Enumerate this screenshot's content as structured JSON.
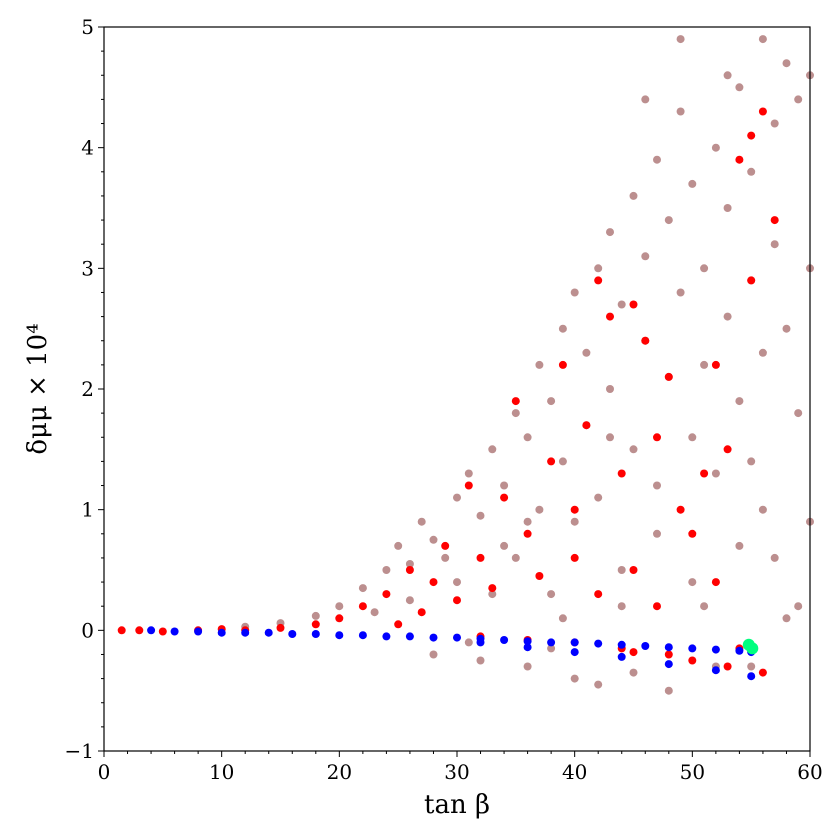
{
  "chart_data": {
    "type": "scatter",
    "xlabel": "tan β",
    "ylabel": "δμμ × 10⁴",
    "xlim": [
      0,
      60
    ],
    "ylim": [
      -1,
      5
    ],
    "xticks": [
      0,
      10,
      20,
      30,
      40,
      50,
      60
    ],
    "yticks": [
      -1,
      0,
      1,
      2,
      3,
      4,
      5
    ],
    "x_tick_labels": [
      "0",
      "10",
      "20",
      "30",
      "40",
      "50",
      "60"
    ],
    "y_tick_labels": [
      "−1",
      "0",
      "1",
      "2",
      "3",
      "4",
      "5"
    ],
    "grid": false,
    "legend": "none",
    "series": [
      {
        "color": "#bc8f8f",
        "points": [
          [
            12,
            0.03
          ],
          [
            15,
            0.06
          ],
          [
            18,
            0.12
          ],
          [
            20,
            0.2
          ],
          [
            22,
            0.35
          ],
          [
            24,
            0.5
          ],
          [
            25,
            0.7
          ],
          [
            26,
            0.55
          ],
          [
            27,
            0.9
          ],
          [
            28,
            0.75
          ],
          [
            28,
            -0.2
          ],
          [
            30,
            1.1
          ],
          [
            30,
            0.4
          ],
          [
            31,
            1.3
          ],
          [
            32,
            0.95
          ],
          [
            32,
            -0.25
          ],
          [
            33,
            1.5
          ],
          [
            34,
            1.2
          ],
          [
            35,
            1.8
          ],
          [
            35,
            0.6
          ],
          [
            36,
            1.6
          ],
          [
            36,
            -0.3
          ],
          [
            37,
            2.2
          ],
          [
            37,
            1.0
          ],
          [
            38,
            1.9
          ],
          [
            38,
            0.3
          ],
          [
            39,
            2.5
          ],
          [
            39,
            1.4
          ],
          [
            40,
            2.8
          ],
          [
            40,
            0.9
          ],
          [
            40,
            -0.4
          ],
          [
            41,
            2.3
          ],
          [
            41,
            1.7
          ],
          [
            42,
            3.0
          ],
          [
            42,
            1.1
          ],
          [
            43,
            3.3
          ],
          [
            43,
            2.0
          ],
          [
            44,
            2.7
          ],
          [
            44,
            0.5
          ],
          [
            45,
            3.6
          ],
          [
            45,
            1.5
          ],
          [
            45,
            -0.35
          ],
          [
            46,
            3.1
          ],
          [
            46,
            2.4
          ],
          [
            47,
            3.9
          ],
          [
            47,
            1.2
          ],
          [
            48,
            3.4
          ],
          [
            48,
            2.1
          ],
          [
            48,
            -0.5
          ],
          [
            49,
            4.3
          ],
          [
            49,
            2.8
          ],
          [
            50,
            3.7
          ],
          [
            50,
            1.6
          ],
          [
            50,
            0.4
          ],
          [
            51,
            3.0
          ],
          [
            51,
            2.2
          ],
          [
            52,
            4.0
          ],
          [
            52,
            1.3
          ],
          [
            53,
            3.5
          ],
          [
            53,
            2.6
          ],
          [
            54,
            4.5
          ],
          [
            54,
            1.9
          ],
          [
            54,
            0.7
          ],
          [
            55,
            3.8
          ],
          [
            55,
            2.9
          ],
          [
            55,
            -0.3
          ],
          [
            56,
            4.9
          ],
          [
            56,
            2.3
          ],
          [
            56,
            1.0
          ],
          [
            57,
            4.2
          ],
          [
            57,
            3.2
          ],
          [
            57,
            0.6
          ],
          [
            58,
            4.7
          ],
          [
            58,
            2.5
          ],
          [
            59,
            4.4
          ],
          [
            59,
            1.8
          ],
          [
            59,
            0.2
          ],
          [
            60,
            4.6
          ],
          [
            60,
            3.0
          ],
          [
            60,
            0.9
          ],
          [
            46,
            4.4
          ],
          [
            49,
            4.9
          ],
          [
            53,
            4.6
          ],
          [
            44,
            0.2
          ],
          [
            38,
            -0.15
          ],
          [
            42,
            -0.45
          ],
          [
            52,
            -0.3
          ],
          [
            47,
            0.8
          ],
          [
            36,
            0.9
          ],
          [
            33,
            0.3
          ],
          [
            29,
            0.6
          ],
          [
            26,
            0.25
          ],
          [
            23,
            0.15
          ],
          [
            31,
            -0.1
          ],
          [
            34,
            0.7
          ],
          [
            39,
            0.1
          ],
          [
            43,
            1.6
          ],
          [
            51,
            0.2
          ],
          [
            58,
            0.1
          ],
          [
            55,
            1.4
          ]
        ]
      },
      {
        "color": "#ff0000",
        "points": [
          [
            1.5,
            0
          ],
          [
            3,
            0
          ],
          [
            5,
            -0.01
          ],
          [
            8,
            0
          ],
          [
            10,
            0.01
          ],
          [
            12,
            0
          ],
          [
            15,
            0.02
          ],
          [
            18,
            0.05
          ],
          [
            20,
            0.1
          ],
          [
            22,
            0.2
          ],
          [
            24,
            0.3
          ],
          [
            25,
            0.05
          ],
          [
            26,
            0.5
          ],
          [
            27,
            0.15
          ],
          [
            28,
            0.4
          ],
          [
            29,
            0.7
          ],
          [
            30,
            0.25
          ],
          [
            31,
            1.2
          ],
          [
            32,
            0.6
          ],
          [
            33,
            0.35
          ],
          [
            34,
            1.1
          ],
          [
            35,
            1.9
          ],
          [
            36,
            0.8
          ],
          [
            37,
            0.45
          ],
          [
            38,
            1.4
          ],
          [
            39,
            2.2
          ],
          [
            40,
            0.6
          ],
          [
            40,
            1.0
          ],
          [
            41,
            1.7
          ],
          [
            42,
            2.9
          ],
          [
            42,
            0.3
          ],
          [
            43,
            2.6
          ],
          [
            44,
            1.3
          ],
          [
            45,
            2.7
          ],
          [
            45,
            0.5
          ],
          [
            46,
            2.4
          ],
          [
            47,
            1.6
          ],
          [
            47,
            0.2
          ],
          [
            48,
            2.1
          ],
          [
            49,
            1.0
          ],
          [
            50,
            0.8
          ],
          [
            51,
            1.3
          ],
          [
            52,
            0.4
          ],
          [
            53,
            1.5
          ],
          [
            54,
            3.9
          ],
          [
            55,
            4.1
          ],
          [
            56,
            4.3
          ],
          [
            57,
            3.4
          ],
          [
            55,
            2.9
          ],
          [
            52,
            2.2
          ],
          [
            48,
            -0.2
          ],
          [
            44,
            -0.15
          ],
          [
            40,
            -0.1
          ],
          [
            36,
            -0.08
          ],
          [
            32,
            -0.05
          ],
          [
            54,
            -0.15
          ],
          [
            50,
            -0.25
          ],
          [
            45,
            -0.18
          ],
          [
            56,
            -0.35
          ],
          [
            53,
            -0.3
          ]
        ]
      },
      {
        "color": "#0000ff",
        "points": [
          [
            4,
            0
          ],
          [
            6,
            -0.01
          ],
          [
            8,
            -0.01
          ],
          [
            10,
            -0.02
          ],
          [
            12,
            -0.02
          ],
          [
            14,
            -0.02
          ],
          [
            16,
            -0.03
          ],
          [
            18,
            -0.03
          ],
          [
            20,
            -0.04
          ],
          [
            22,
            -0.04
          ],
          [
            24,
            -0.05
          ],
          [
            26,
            -0.05
          ],
          [
            28,
            -0.06
          ],
          [
            30,
            -0.06
          ],
          [
            32,
            -0.07
          ],
          [
            34,
            -0.08
          ],
          [
            36,
            -0.09
          ],
          [
            38,
            -0.1
          ],
          [
            40,
            -0.1
          ],
          [
            42,
            -0.11
          ],
          [
            44,
            -0.12
          ],
          [
            46,
            -0.13
          ],
          [
            48,
            -0.14
          ],
          [
            50,
            -0.15
          ],
          [
            52,
            -0.16
          ],
          [
            54,
            -0.17
          ],
          [
            55,
            -0.18
          ],
          [
            32,
            -0.1
          ],
          [
            36,
            -0.14
          ],
          [
            40,
            -0.18
          ],
          [
            44,
            -0.22
          ],
          [
            48,
            -0.28
          ],
          [
            52,
            -0.33
          ],
          [
            55,
            -0.38
          ]
        ]
      },
      {
        "color": "#00ff7f",
        "points": [
          [
            54.8,
            -0.12
          ],
          [
            55.1,
            -0.15
          ]
        ]
      }
    ]
  }
}
